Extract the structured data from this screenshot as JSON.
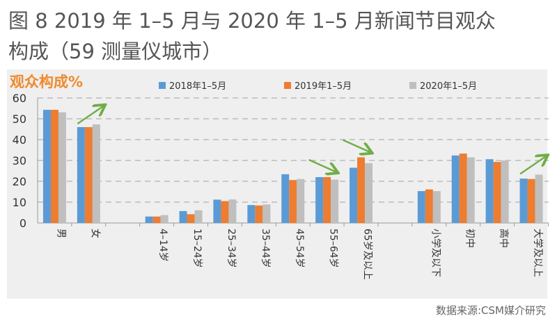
{
  "title_line1": "图 8 2019 年 1–5 月与 2020 年 1–5 月新闻节目观众",
  "title_line2": "构成（59 测量仪城市）",
  "source": "数据来源:CSM媒介研究",
  "chart_data": {
    "type": "bar",
    "ylabel": "观众构成%",
    "ylim": [
      0,
      60
    ],
    "yticks": [
      0,
      10,
      20,
      30,
      40,
      50,
      60
    ],
    "grid": true,
    "legend_position": "top",
    "categories": [
      "男",
      "女",
      "",
      "4–14岁",
      "15–24岁",
      "25–34岁",
      "35–44岁",
      "45–54岁",
      "55–64岁",
      "65岁及以上",
      "",
      "小学及以下",
      "初中",
      "高中",
      "大学及以上"
    ],
    "series": [
      {
        "name": "2018年1–5月",
        "color": "#5b9bd5",
        "values": [
          54.3,
          46.0,
          null,
          3.1,
          5.7,
          11.2,
          8.6,
          23.4,
          22.0,
          26.5,
          null,
          15.3,
          32.4,
          30.6,
          21.3
        ]
      },
      {
        "name": "2019年1–5月",
        "color": "#ed7d31",
        "values": [
          54.3,
          46.0,
          null,
          3.1,
          4.2,
          10.5,
          8.4,
          20.6,
          22.0,
          31.5,
          null,
          16.1,
          33.3,
          29.3,
          21.1
        ]
      },
      {
        "name": "2020年1–5月",
        "color": "#bfbfbf",
        "values": [
          53.1,
          47.3,
          null,
          3.8,
          6.1,
          11.3,
          8.9,
          21.1,
          20.8,
          28.7,
          null,
          15.3,
          31.5,
          30.0,
          23.2
        ]
      }
    ],
    "annotations": [
      {
        "type": "arrow-up",
        "category": "女"
      },
      {
        "type": "arrow-down",
        "category": "55–64岁"
      },
      {
        "type": "arrow-down",
        "category": "65岁及以上"
      },
      {
        "type": "arrow-up",
        "category": "大学及以上"
      }
    ]
  }
}
